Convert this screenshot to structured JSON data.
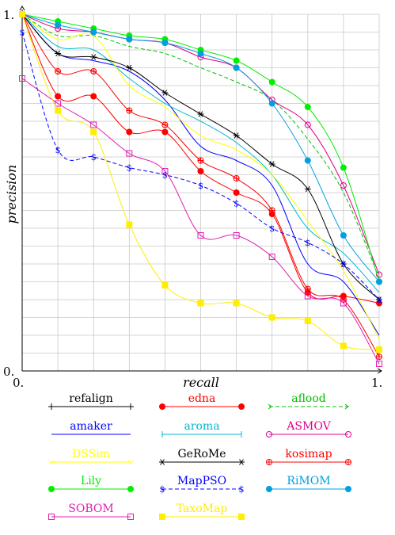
{
  "chart_data": {
    "type": "line",
    "xlabel": "recall",
    "ylabel": "precision",
    "xlim": [
      0,
      1
    ],
    "ylim": [
      0,
      1
    ],
    "x_tick_labels": [
      "0.",
      "1."
    ],
    "y_tick_labels": [
      "0.",
      "1."
    ],
    "grid": true,
    "legend_position": "bottom",
    "x": [
      0,
      0.1,
      0.2,
      0.3,
      0.4,
      0.5,
      0.6,
      0.7,
      0.8,
      0.9,
      1.0
    ],
    "series": [
      {
        "name": "refalign",
        "color": "#000000",
        "marker": "plus",
        "dashed": false,
        "values": null
      },
      {
        "name": "edna",
        "color": "#ff0000",
        "marker": "dot",
        "dashed": false,
        "values": [
          1.0,
          0.77,
          0.77,
          0.67,
          0.67,
          0.56,
          0.5,
          0.44,
          0.22,
          0.21,
          0.19
        ]
      },
      {
        "name": "aflood",
        "color": "#00c000",
        "marker": "arrow",
        "dashed": true,
        "values": [
          1.0,
          0.94,
          0.94,
          0.91,
          0.89,
          0.85,
          0.81,
          0.76,
          0.65,
          0.5,
          0.26
        ]
      },
      {
        "name": "amaker",
        "color": "#0000ff",
        "marker": "none",
        "dashed": false,
        "values": [
          1.0,
          0.89,
          0.87,
          0.84,
          0.76,
          0.63,
          0.59,
          0.52,
          0.3,
          0.25,
          0.1
        ]
      },
      {
        "name": "aroma",
        "color": "#00b8d0",
        "marker": "bar",
        "dashed": false,
        "values": [
          1.0,
          0.91,
          0.9,
          0.82,
          0.75,
          0.7,
          0.64,
          0.55,
          0.4,
          0.33,
          0.22
        ]
      },
      {
        "name": "ASMOV",
        "color": "#e0008c",
        "marker": "circle",
        "dashed": false,
        "values": [
          1.0,
          0.96,
          0.95,
          0.93,
          0.92,
          0.88,
          0.85,
          0.76,
          0.69,
          0.52,
          0.27
        ]
      },
      {
        "name": "DSSim",
        "color": "#ffff00",
        "marker": "arrowdown",
        "dashed": false,
        "values": [
          1.0,
          0.93,
          0.94,
          0.8,
          0.74,
          0.66,
          0.62,
          0.55,
          0.42,
          0.28,
          0.09
        ]
      },
      {
        "name": "GeRoMe",
        "color": "#000000",
        "marker": "star",
        "dashed": false,
        "values": [
          1.0,
          0.89,
          0.88,
          0.85,
          0.78,
          0.72,
          0.66,
          0.58,
          0.51,
          0.3,
          0.2
        ]
      },
      {
        "name": "kosimap",
        "color": "#ff0000",
        "marker": "oplus",
        "dashed": false,
        "values": [
          1.0,
          0.84,
          0.84,
          0.73,
          0.69,
          0.59,
          0.54,
          0.45,
          0.23,
          0.2,
          0.04
        ]
      },
      {
        "name": "Lily",
        "color": "#00ee00",
        "marker": "dot",
        "dashed": false,
        "values": [
          1.0,
          0.98,
          0.96,
          0.94,
          0.93,
          0.9,
          0.87,
          0.81,
          0.74,
          0.57,
          0.25
        ]
      },
      {
        "name": "MapPSO",
        "color": "#0000ff",
        "marker": "dollar",
        "dashed": true,
        "values": [
          0.95,
          0.62,
          0.6,
          0.57,
          0.55,
          0.52,
          0.47,
          0.4,
          0.36,
          0.3,
          0.2
        ]
      },
      {
        "name": "RiMOM",
        "color": "#00a0e0",
        "marker": "dot",
        "dashed": false,
        "values": [
          1.0,
          0.97,
          0.95,
          0.93,
          0.92,
          0.89,
          0.85,
          0.75,
          0.59,
          0.38,
          0.25
        ]
      },
      {
        "name": "SOBOM",
        "color": "#e020b0",
        "marker": "square",
        "dashed": false,
        "values": [
          0.82,
          0.75,
          0.69,
          0.61,
          0.56,
          0.38,
          0.38,
          0.32,
          0.21,
          0.19,
          0.02
        ]
      },
      {
        "name": "TaxoMap",
        "color": "#ffee00",
        "marker": "fsquare",
        "dashed": false,
        "values": [
          1.0,
          0.73,
          0.67,
          0.41,
          0.24,
          0.19,
          0.19,
          0.15,
          0.14,
          0.07,
          0.06
        ]
      }
    ]
  }
}
